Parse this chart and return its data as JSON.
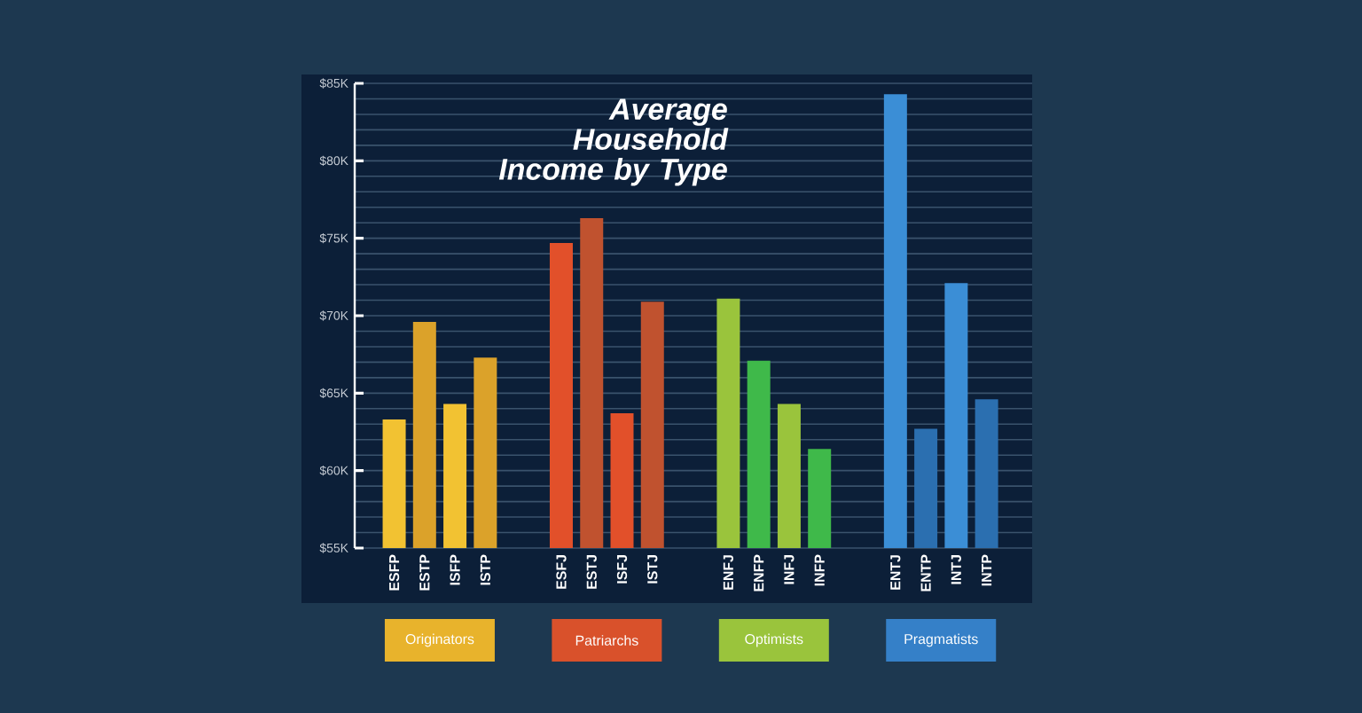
{
  "chart_data": {
    "type": "bar",
    "title": "Average Household Income by Type",
    "categories": [
      "ESFP",
      "ESTP",
      "ISFP",
      "ISTP",
      "ESFJ",
      "ESTJ",
      "ISFJ",
      "ISTJ",
      "ENFJ",
      "ENFP",
      "INFJ",
      "INFP",
      "ENTJ",
      "ENTP",
      "INTJ",
      "INTP"
    ],
    "series": [
      {
        "name": "Originators",
        "color": "#e8b32c",
        "colors": [
          "#f2c232",
          "#dba22a",
          "#f2c232",
          "#dba22a",
          null,
          null,
          null,
          null,
          null,
          null,
          null,
          null,
          null,
          null,
          null,
          null
        ],
        "values": [
          63.3,
          69.6,
          64.3,
          67.3,
          null,
          null,
          null,
          null,
          null,
          null,
          null,
          null,
          null,
          null,
          null,
          null
        ]
      },
      {
        "name": "Patriarchs",
        "color": "#d9512b",
        "colors": [
          null,
          null,
          null,
          null,
          "#e2502a",
          "#c0522f",
          "#e2502a",
          "#c0522f",
          null,
          null,
          null,
          null,
          null,
          null,
          null,
          null
        ],
        "values": [
          null,
          null,
          null,
          null,
          74.7,
          76.3,
          63.7,
          70.9,
          null,
          null,
          null,
          null,
          null,
          null,
          null,
          null
        ]
      },
      {
        "name": "Optimists",
        "color": "#9ac43c",
        "colors": [
          null,
          null,
          null,
          null,
          null,
          null,
          null,
          null,
          "#9ac43c",
          "#3fb94a",
          "#9ac43c",
          "#3fb94a",
          null,
          null,
          null,
          null
        ],
        "values": [
          null,
          null,
          null,
          null,
          null,
          null,
          null,
          null,
          71.1,
          67.1,
          64.3,
          61.4,
          null,
          null,
          null,
          null
        ]
      },
      {
        "name": "Pragmatists",
        "color": "#3580c8",
        "colors": [
          null,
          null,
          null,
          null,
          null,
          null,
          null,
          null,
          null,
          null,
          null,
          null,
          "#3b8ed6",
          "#2b6fb0",
          "#3b8ed6",
          "#2b6fb0"
        ],
        "values": [
          null,
          null,
          null,
          null,
          null,
          null,
          null,
          null,
          null,
          null,
          null,
          null,
          84.3,
          62.7,
          72.1,
          64.6
        ]
      }
    ],
    "ylim": [
      55,
      85
    ],
    "yticks": [
      {
        "value": 55,
        "label": "$55K"
      },
      {
        "value": 60,
        "label": "$60K"
      },
      {
        "value": 65,
        "label": "$65K"
      },
      {
        "value": 70,
        "label": "$70K"
      },
      {
        "value": 75,
        "label": "$75K"
      },
      {
        "value": 80,
        "label": "$80K"
      },
      {
        "value": 85,
        "label": "$85K"
      }
    ],
    "grid": "y"
  }
}
